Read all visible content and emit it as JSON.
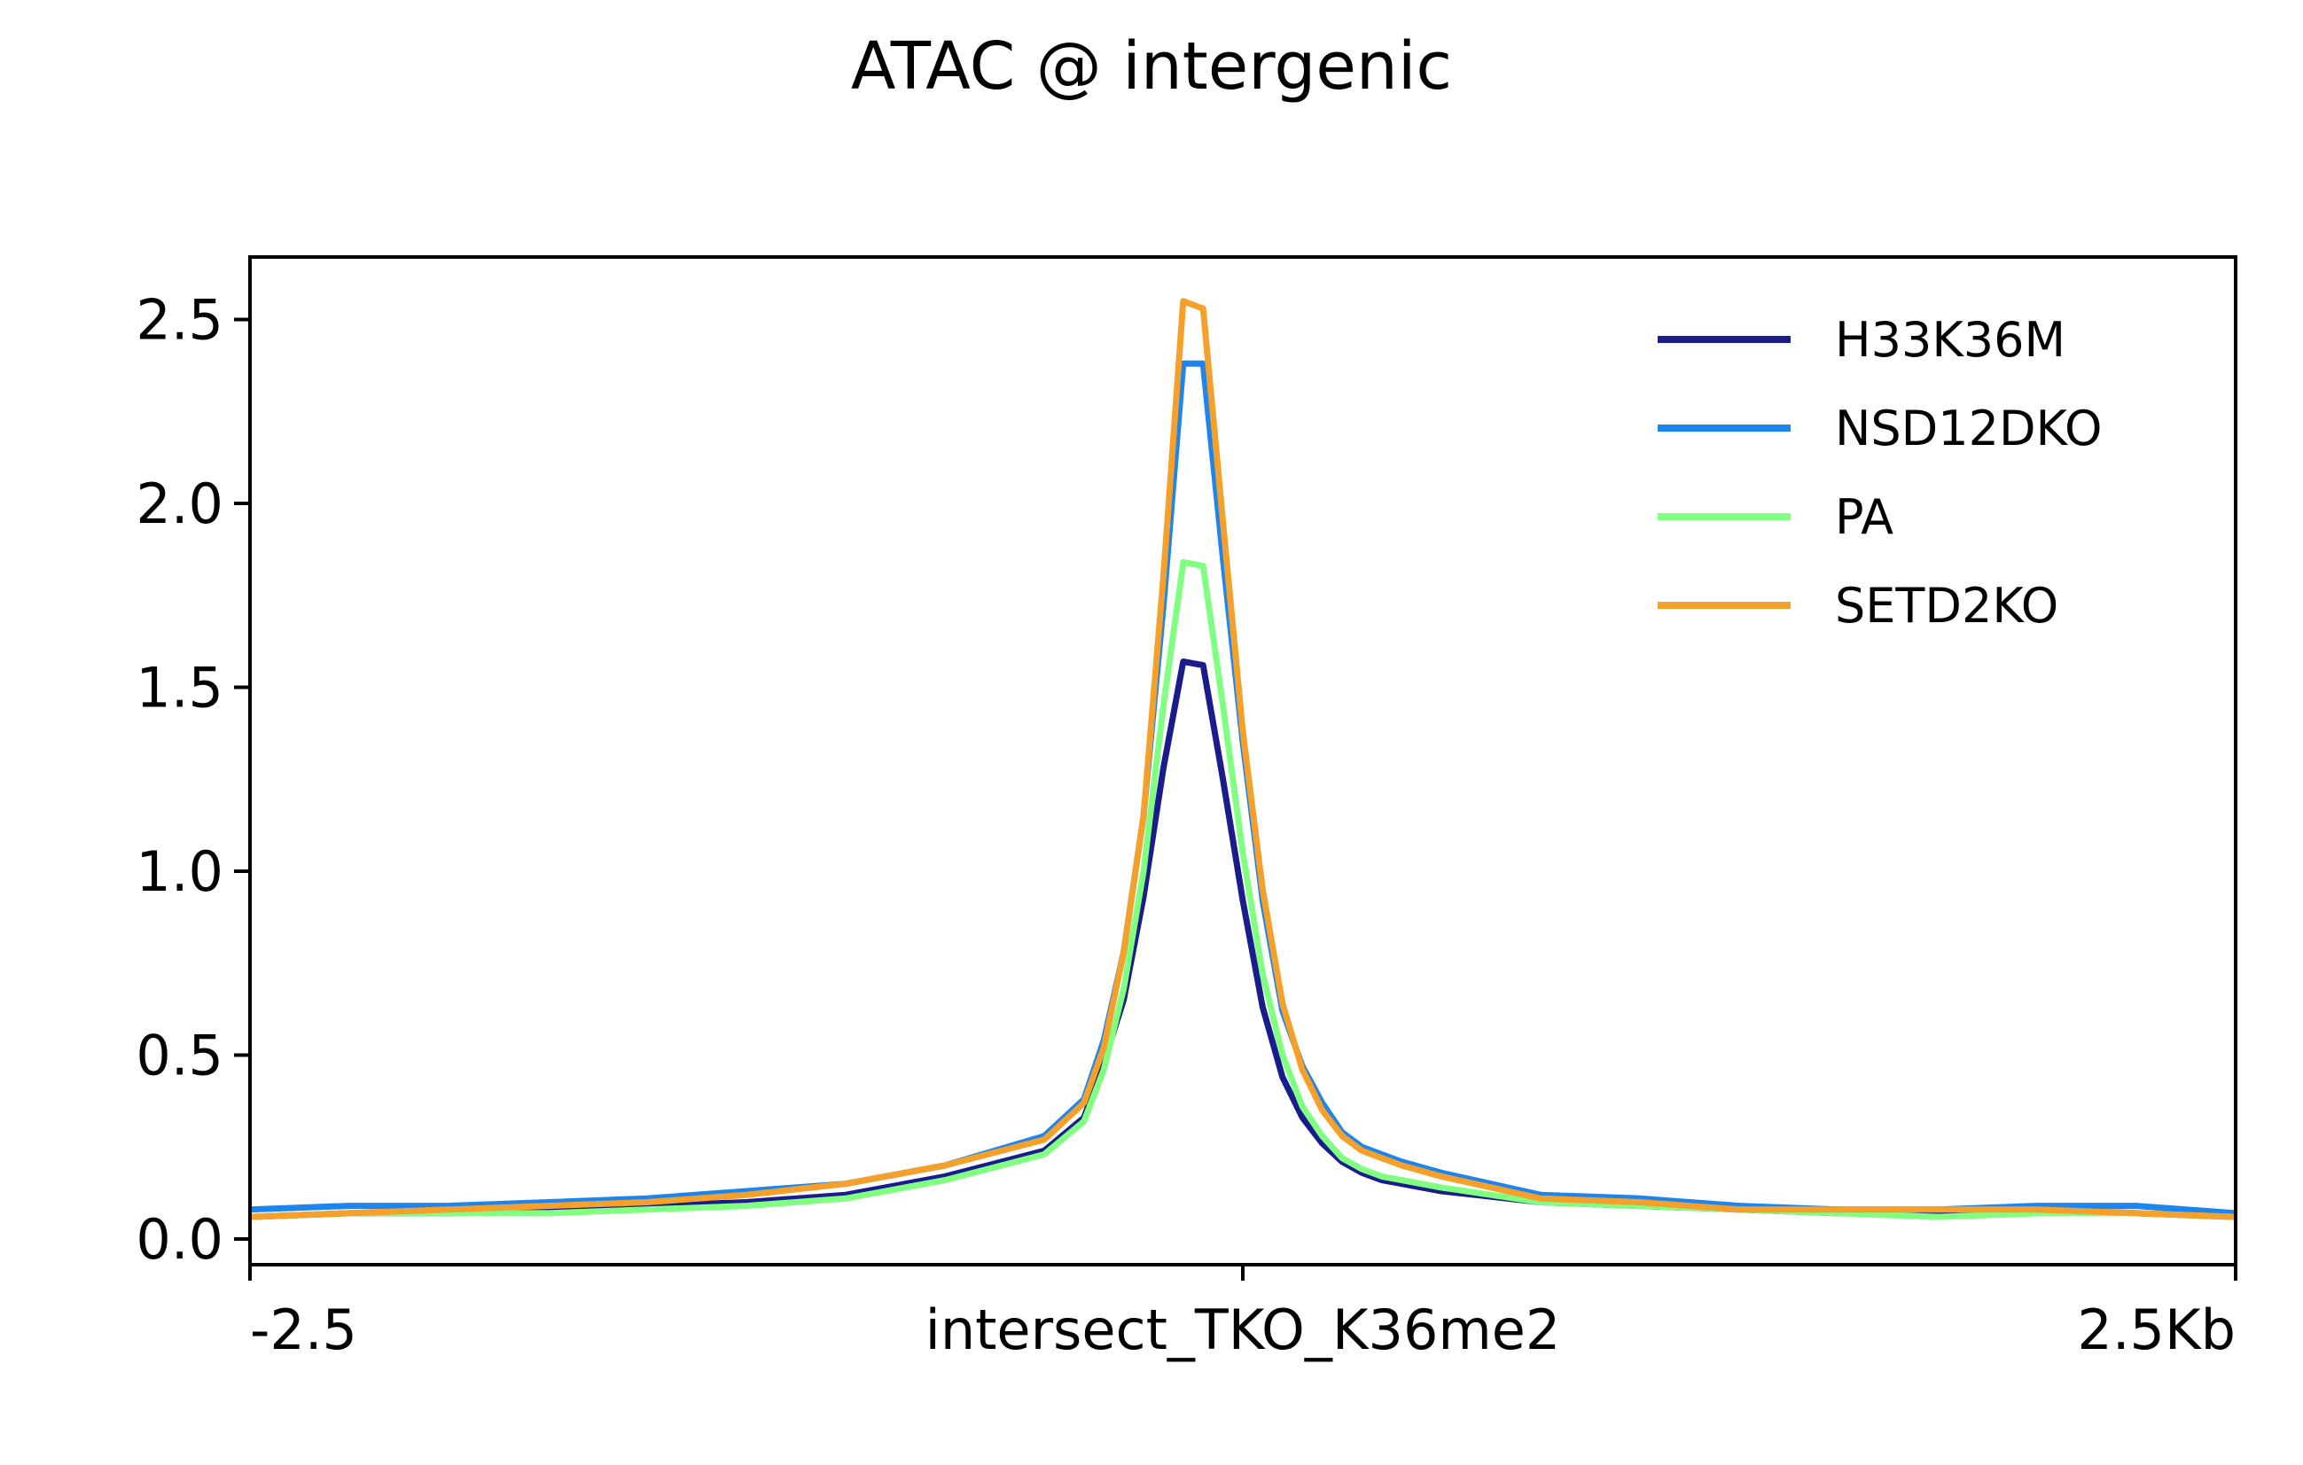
{
  "chart_data": {
    "type": "line",
    "title": "ATAC @ intergenic",
    "xlabel": "",
    "ylabel": "",
    "x_tick_labels": [
      "-2.5",
      "intersect_TKO_K36me2",
      "2.5Kb"
    ],
    "x_range": [
      -2.5,
      2.5
    ],
    "x_unit": "Kb",
    "ylim": [
      -0.07,
      2.67
    ],
    "y_ticks": [
      0.0,
      0.5,
      1.0,
      1.5,
      2.0,
      2.5
    ],
    "y_tick_labels": [
      "0.0",
      "0.5",
      "1.0",
      "1.5",
      "2.0",
      "2.5"
    ],
    "grid": false,
    "legend_position": "top-right",
    "x": [
      -2.5,
      -2.25,
      -2.0,
      -1.75,
      -1.5,
      -1.25,
      -1.0,
      -0.75,
      -0.5,
      -0.4,
      -0.35,
      -0.3,
      -0.25,
      -0.2,
      -0.15,
      -0.1,
      -0.05,
      0.0,
      0.05,
      0.1,
      0.15,
      0.2,
      0.25,
      0.3,
      0.35,
      0.4,
      0.5,
      0.75,
      1.0,
      1.25,
      1.5,
      1.75,
      2.0,
      2.25,
      2.5
    ],
    "series": [
      {
        "name": "H33K36M",
        "color": "#191c8a",
        "values": [
          0.06,
          0.07,
          0.07,
          0.08,
          0.09,
          0.1,
          0.12,
          0.17,
          0.24,
          0.33,
          0.48,
          0.65,
          0.93,
          1.28,
          1.57,
          1.56,
          1.25,
          0.92,
          0.63,
          0.44,
          0.33,
          0.26,
          0.21,
          0.18,
          0.16,
          0.15,
          0.13,
          0.1,
          0.09,
          0.08,
          0.07,
          0.07,
          0.08,
          0.07,
          0.06
        ]
      },
      {
        "name": "NSD12DKO",
        "color": "#1c86ee",
        "values": [
          0.08,
          0.09,
          0.09,
          0.1,
          0.11,
          0.13,
          0.15,
          0.2,
          0.28,
          0.38,
          0.54,
          0.78,
          1.15,
          1.72,
          2.38,
          2.38,
          1.85,
          1.35,
          0.92,
          0.62,
          0.47,
          0.37,
          0.29,
          0.25,
          0.23,
          0.21,
          0.18,
          0.12,
          0.11,
          0.09,
          0.08,
          0.08,
          0.09,
          0.09,
          0.07
        ]
      },
      {
        "name": "PA",
        "color": "#80ff80",
        "values": [
          0.06,
          0.07,
          0.07,
          0.07,
          0.08,
          0.09,
          0.11,
          0.16,
          0.23,
          0.32,
          0.46,
          0.68,
          1.0,
          1.45,
          1.84,
          1.83,
          1.45,
          1.05,
          0.72,
          0.5,
          0.36,
          0.28,
          0.22,
          0.19,
          0.17,
          0.16,
          0.14,
          0.1,
          0.09,
          0.08,
          0.07,
          0.06,
          0.07,
          0.07,
          0.06
        ]
      },
      {
        "name": "SETD2KO",
        "color": "#f4a02a",
        "values": [
          0.06,
          0.07,
          0.08,
          0.09,
          0.1,
          0.12,
          0.15,
          0.2,
          0.27,
          0.37,
          0.52,
          0.78,
          1.15,
          1.8,
          2.55,
          2.53,
          1.95,
          1.38,
          0.95,
          0.64,
          0.46,
          0.35,
          0.28,
          0.24,
          0.22,
          0.2,
          0.17,
          0.11,
          0.1,
          0.08,
          0.08,
          0.08,
          0.08,
          0.07,
          0.06
        ]
      }
    ]
  }
}
